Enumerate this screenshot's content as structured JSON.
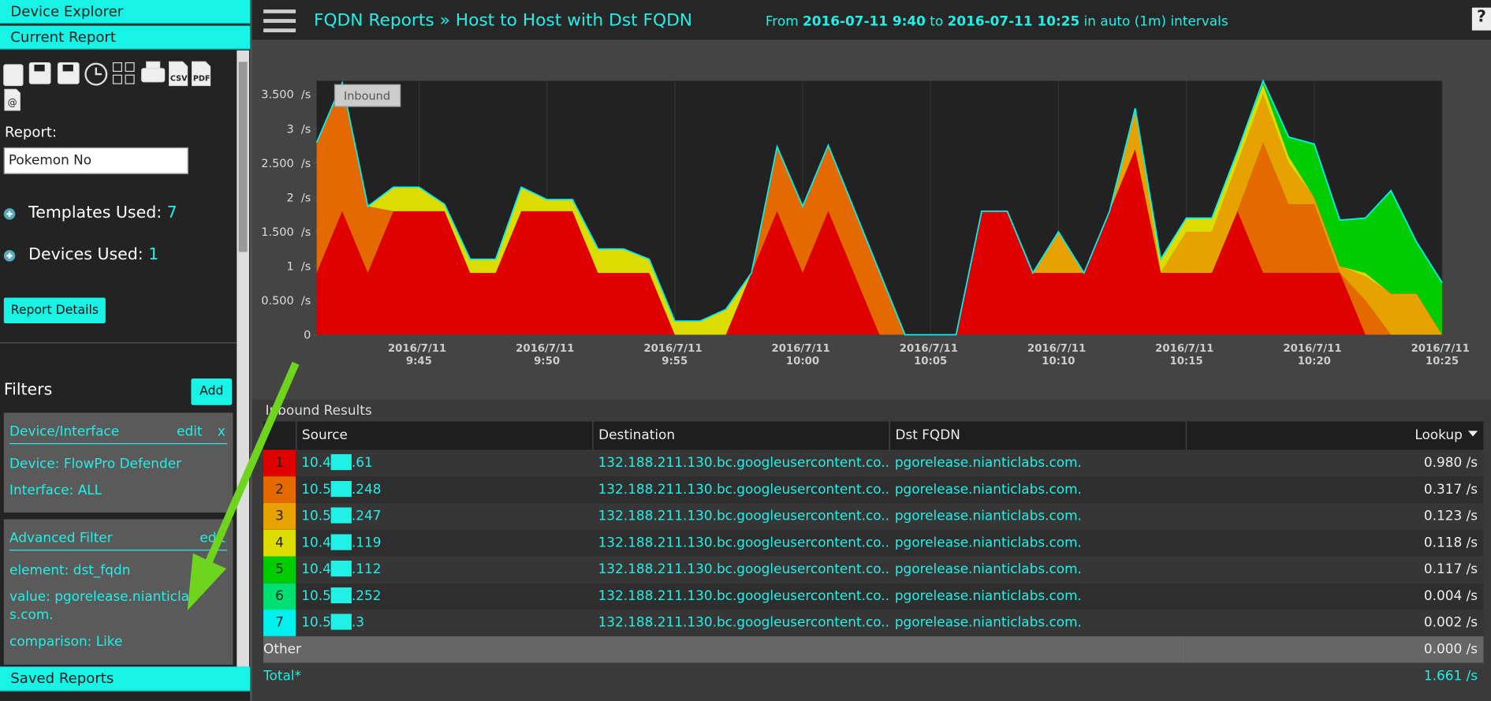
{
  "sidebar": {
    "tabs": [
      "Device Explorer",
      "Current Report"
    ],
    "icon_labels": [
      "CSV",
      "PDF",
      "@"
    ],
    "report_label": "Report:",
    "report_name": "Pokemon No",
    "templates_label": "Templates Used:",
    "templates_count": 7,
    "devices_label": "Devices Used:",
    "devices_count": 1,
    "details_button": "Report Details",
    "filters_title": "Filters",
    "add_button": "Add",
    "filters": [
      {
        "title": "Device/Interface",
        "actions": [
          "edit",
          "x"
        ],
        "lines": [
          "Device: FlowPro Defender",
          "Interface: ALL"
        ]
      },
      {
        "title": "Advanced Filter",
        "actions": [
          "edit"
        ],
        "lines": [
          "element: dst_fqdn",
          "value: pgorelease.nianticlabs.com.",
          "comparison: Like"
        ]
      }
    ],
    "saved_reports": "Saved Reports"
  },
  "header": {
    "title": "FQDN Reports » Host to Host with Dst FQDN",
    "from_word": "From",
    "from": "2016-07-11 9:40",
    "to_word": "to",
    "to": "2016-07-11 10:25",
    "suffix": "in auto (1m) intervals",
    "help": "?"
  },
  "chart_data": {
    "type": "area",
    "stacked": true,
    "tag": "Inbound",
    "categories": [
      null,
      null,
      null,
      null,
      "2016/7/11 9:45",
      null,
      null,
      null,
      null,
      "2016/7/11 9:50",
      null,
      null,
      null,
      null,
      "2016/7/11 9:55",
      null,
      null,
      null,
      null,
      "2016/7/11 10:00",
      null,
      null,
      null,
      null,
      "2016/7/11 10:05",
      null,
      null,
      null,
      null,
      "2016/7/11 10:10",
      null,
      null,
      null,
      null,
      "2016/7/11 10:15",
      null,
      null,
      null,
      null,
      "2016/7/11 10:20",
      null,
      null,
      null,
      null,
      "2016/7/11 10:25"
    ],
    "series": [
      {
        "name": "10.4██.61",
        "color": "#e00000",
        "values": [
          0.9,
          1.8,
          0.9,
          1.8,
          1.8,
          1.8,
          0.9,
          0.9,
          1.8,
          1.8,
          1.8,
          0.9,
          0.9,
          0.9,
          0,
          0,
          0,
          0.9,
          1.8,
          0.9,
          1.8,
          0.9,
          0,
          0,
          0,
          0,
          1.8,
          1.8,
          0.9,
          0.9,
          0.9,
          1.8,
          2.7,
          0.9,
          0.9,
          0.9,
          1.8,
          0.9,
          0.9,
          0.9,
          0.9,
          0,
          0,
          0,
          0
        ]
      },
      {
        "name": "10.5██.248",
        "color": "#e46a00",
        "values": [
          1.9,
          1.87,
          0.97,
          0,
          0,
          0,
          0,
          0,
          0,
          0,
          0,
          0,
          0,
          0,
          0,
          0,
          0,
          0,
          0.94,
          0.97,
          0.96,
          0.94,
          0.92,
          0,
          0,
          0,
          0,
          0,
          0,
          0,
          0,
          0,
          0,
          0,
          0,
          0,
          0,
          1.9,
          1.0,
          1.0,
          0,
          0.5,
          0,
          0,
          0
        ]
      },
      {
        "name": "10.5██.247",
        "color": "#e8a200",
        "values": [
          0,
          0,
          0,
          0,
          0,
          0,
          0,
          0,
          0,
          0,
          0,
          0,
          0,
          0,
          0,
          0,
          0,
          0,
          0,
          0,
          0,
          0,
          0,
          0,
          0,
          0,
          0,
          0,
          0,
          0.6,
          0,
          0,
          0.6,
          0,
          0.6,
          0.6,
          0.7,
          0.7,
          0.6,
          0.1,
          0.1,
          0.35,
          0.6,
          0.6,
          0
        ]
      },
      {
        "name": "10.4██.119",
        "color": "#dcdc00",
        "values": [
          0,
          0,
          0,
          0.35,
          0.35,
          0.1,
          0.2,
          0.2,
          0.35,
          0.17,
          0.17,
          0.35,
          0.35,
          0.2,
          0.2,
          0.2,
          0.37,
          0,
          0,
          0,
          0,
          0,
          0,
          0,
          0,
          0,
          0,
          0,
          0,
          0,
          0,
          0,
          0,
          0.2,
          0.2,
          0.2,
          0.17,
          0.15,
          0.1,
          0,
          0,
          0.05,
          0,
          0,
          0
        ]
      },
      {
        "name": "10.4██.112",
        "color": "#00cc00",
        "values": [
          0,
          0,
          0,
          0,
          0,
          0,
          0,
          0,
          0,
          0,
          0,
          0,
          0,
          0,
          0,
          0,
          0,
          0,
          0,
          0,
          0,
          0,
          0,
          0,
          0,
          0,
          0,
          0,
          0,
          0,
          0,
          0,
          0,
          0,
          0,
          0,
          0,
          0.05,
          0.28,
          0.78,
          0.67,
          0.8,
          1.5,
          0.75,
          0.76
        ]
      },
      {
        "name": "10.5██.252",
        "color": "#00e070",
        "values": [
          0,
          0,
          0,
          0,
          0,
          0,
          0,
          0,
          0,
          0,
          0,
          0,
          0,
          0,
          0,
          0,
          0,
          0,
          0,
          0,
          0,
          0,
          0,
          0,
          0,
          0,
          0,
          0,
          0,
          0,
          0,
          0,
          0,
          0,
          0,
          0,
          0,
          0,
          0,
          0,
          0,
          0,
          0,
          0,
          0
        ]
      },
      {
        "name": "10.5██.3",
        "color": "#00f0f0",
        "values": [
          0,
          0,
          0,
          0,
          0,
          0,
          0,
          0,
          0,
          0,
          0,
          0,
          0,
          0,
          0,
          0,
          0,
          0,
          0,
          0,
          0,
          0,
          0,
          0,
          0,
          0,
          0,
          0,
          0,
          0,
          0,
          0,
          0,
          0,
          0,
          0,
          0,
          0,
          0,
          0,
          0,
          0,
          0,
          0,
          0
        ]
      }
    ],
    "ylim": [
      0,
      3.7
    ],
    "yticks": [
      0,
      {
        "value": 0.5,
        "label": "0.500  /s"
      },
      {
        "value": 1,
        "label": "1  /s"
      },
      {
        "value": 1.5,
        "label": "1.500  /s"
      },
      {
        "value": 2,
        "label": "2  /s"
      },
      {
        "value": 2.5,
        "label": "2.500  /s"
      },
      {
        "value": 3,
        "label": "3  /s"
      },
      {
        "value": 3.5,
        "label": "3.500  /s"
      }
    ]
  },
  "table": {
    "title": "Inbound Results",
    "columns": [
      "Source",
      "Destination",
      "Dst FQDN",
      "Lookup"
    ],
    "rows": [
      {
        "rank": 1,
        "destination": "132.188.211.130.bc.googleusercontent.co...",
        "fqdn": "pgorelease.nianticlabs.com.",
        "lookup": "0.980 /s"
      },
      {
        "rank": 2,
        "destination": "132.188.211.130.bc.googleusercontent.co...",
        "fqdn": "pgorelease.nianticlabs.com.",
        "lookup": "0.317 /s"
      },
      {
        "rank": 3,
        "destination": "132.188.211.130.bc.googleusercontent.co...",
        "fqdn": "pgorelease.nianticlabs.com.",
        "lookup": "0.123 /s"
      },
      {
        "rank": 4,
        "destination": "132.188.211.130.bc.googleusercontent.co...",
        "fqdn": "pgorelease.nianticlabs.com.",
        "lookup": "0.118 /s"
      },
      {
        "rank": 5,
        "destination": "132.188.211.130.bc.googleusercontent.co...",
        "fqdn": "pgorelease.nianticlabs.com.",
        "lookup": "0.117 /s"
      },
      {
        "rank": 6,
        "destination": "132.188.211.130.bc.googleusercontent.co...",
        "fqdn": "pgorelease.nianticlabs.com.",
        "lookup": "0.004 /s"
      },
      {
        "rank": 7,
        "destination": "132.188.211.130.bc.googleusercontent.co...",
        "fqdn": "pgorelease.nianticlabs.com.",
        "lookup": "0.002 /s"
      }
    ],
    "other": {
      "label": "Other",
      "value": "0.000 /s"
    },
    "total": {
      "label": "Total*",
      "value": "1.661 /s"
    }
  }
}
